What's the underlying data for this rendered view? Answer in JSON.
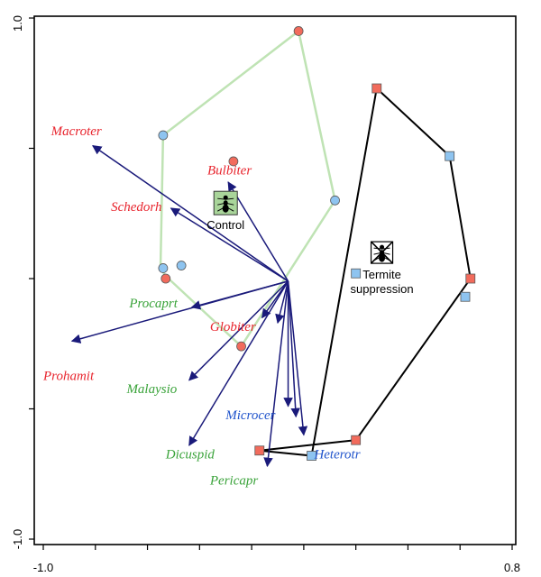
{
  "chart_data": {
    "type": "scatter",
    "title": "",
    "xlabel": "",
    "ylabel": "",
    "xlim": [
      -1.0,
      0.8
    ],
    "ylim": [
      -1.0,
      1.0
    ],
    "x_tick_labels": [
      "-1.0",
      "0.8"
    ],
    "y_tick_labels": [
      "1.0",
      "-1.0"
    ],
    "grid": false,
    "colors": {
      "control_hull": "#bfe3b4",
      "termite_hull": "#000000",
      "arrow": "#1a1a7a",
      "point_red": "#f26b5c",
      "point_blue": "#8ec4f0",
      "label_red": "#e8252e",
      "label_green": "#3aa33a",
      "label_blue": "#2255cc"
    },
    "treatments": [
      {
        "label": "Control",
        "x": -0.3,
        "y": 0.29,
        "icon": "ant-icon"
      },
      {
        "label": "Termite\nsuppression",
        "x": 0.3,
        "y": 0.1,
        "icon": "crossed-termite-icon"
      }
    ],
    "control_hull": [
      [
        -0.02,
        0.95
      ],
      [
        0.12,
        0.3
      ],
      [
        -0.24,
        -0.26
      ],
      [
        -0.53,
        0.01
      ],
      [
        -0.55,
        0.04
      ],
      [
        -0.54,
        0.55
      ]
    ],
    "termite_hull": [
      [
        0.28,
        0.73
      ],
      [
        0.56,
        0.47
      ],
      [
        0.64,
        0.0
      ],
      [
        0.2,
        -0.62
      ],
      [
        -0.17,
        -0.66
      ],
      [
        0.03,
        -0.68
      ]
    ],
    "control_points": [
      {
        "x": -0.02,
        "y": 0.95,
        "shape": "circle",
        "color": "red"
      },
      {
        "x": -0.54,
        "y": 0.55,
        "shape": "circle",
        "color": "blue"
      },
      {
        "x": -0.27,
        "y": 0.45,
        "shape": "circle",
        "color": "red"
      },
      {
        "x": 0.12,
        "y": 0.3,
        "shape": "circle",
        "color": "blue"
      },
      {
        "x": -0.47,
        "y": 0.05,
        "shape": "circle",
        "color": "blue"
      },
      {
        "x": -0.54,
        "y": 0.04,
        "shape": "circle",
        "color": "blue"
      },
      {
        "x": -0.53,
        "y": 0.0,
        "shape": "circle",
        "color": "red"
      },
      {
        "x": -0.24,
        "y": -0.26,
        "shape": "circle",
        "color": "red"
      }
    ],
    "termite_points": [
      {
        "x": 0.28,
        "y": 0.73,
        "shape": "square",
        "color": "red"
      },
      {
        "x": 0.56,
        "y": 0.47,
        "shape": "square",
        "color": "blue"
      },
      {
        "x": 0.64,
        "y": 0.0,
        "shape": "square",
        "color": "red"
      },
      {
        "x": 0.62,
        "y": -0.07,
        "shape": "square",
        "color": "blue"
      },
      {
        "x": 0.2,
        "y": 0.02,
        "shape": "square",
        "color": "blue"
      },
      {
        "x": 0.2,
        "y": -0.62,
        "shape": "square",
        "color": "red"
      },
      {
        "x": 0.03,
        "y": -0.68,
        "shape": "square",
        "color": "blue"
      },
      {
        "x": -0.17,
        "y": -0.66,
        "shape": "square",
        "color": "red"
      }
    ],
    "origin": [
      -0.06,
      -0.01
    ],
    "species": [
      {
        "name": "Macroter",
        "x": -0.81,
        "y": 0.51,
        "color": "red",
        "lx": -0.97,
        "ly": 0.55
      },
      {
        "name": "Bulbiter",
        "x": -0.29,
        "y": 0.37,
        "color": "red",
        "lx": -0.37,
        "ly": 0.4
      },
      {
        "name": "Schedorh",
        "x": -0.51,
        "y": 0.27,
        "color": "red",
        "lx": -0.74,
        "ly": 0.26
      },
      {
        "name": "Procaprt",
        "x": -0.43,
        "y": -0.11,
        "color": "green",
        "lx": -0.67,
        "ly": -0.11
      },
      {
        "name": "Globiter",
        "x": -0.16,
        "y": -0.15,
        "color": "red",
        "lx": -0.36,
        "ly": -0.2
      },
      {
        "name": "Prohamit",
        "x": -0.89,
        "y": -0.24,
        "color": "red",
        "lx": -1.0,
        "ly": -0.39
      },
      {
        "name": "Malaysio",
        "x": -0.44,
        "y": -0.39,
        "color": "green",
        "lx": -0.68,
        "ly": -0.44
      },
      {
        "name": "Dicuspid",
        "x": -0.44,
        "y": -0.64,
        "color": "green",
        "lx": -0.53,
        "ly": -0.69
      },
      {
        "name": "Microcer",
        "x": -0.06,
        "y": -0.49,
        "color": "blue",
        "lx": -0.3,
        "ly": -0.54
      },
      {
        "name": "Pericapr",
        "x": -0.14,
        "y": -0.72,
        "color": "green",
        "lx": -0.36,
        "ly": -0.79
      },
      {
        "name": "Heterotr",
        "x": 0.0,
        "y": -0.6,
        "color": "blue",
        "lx": 0.04,
        "ly": -0.69
      },
      {
        "name": "",
        "x": -0.03,
        "y": -0.53,
        "color": "blue",
        "lx": 0,
        "ly": 0
      },
      {
        "name": "",
        "x": -0.1,
        "y": -0.17,
        "color": "blue",
        "lx": 0,
        "ly": 0
      }
    ]
  }
}
